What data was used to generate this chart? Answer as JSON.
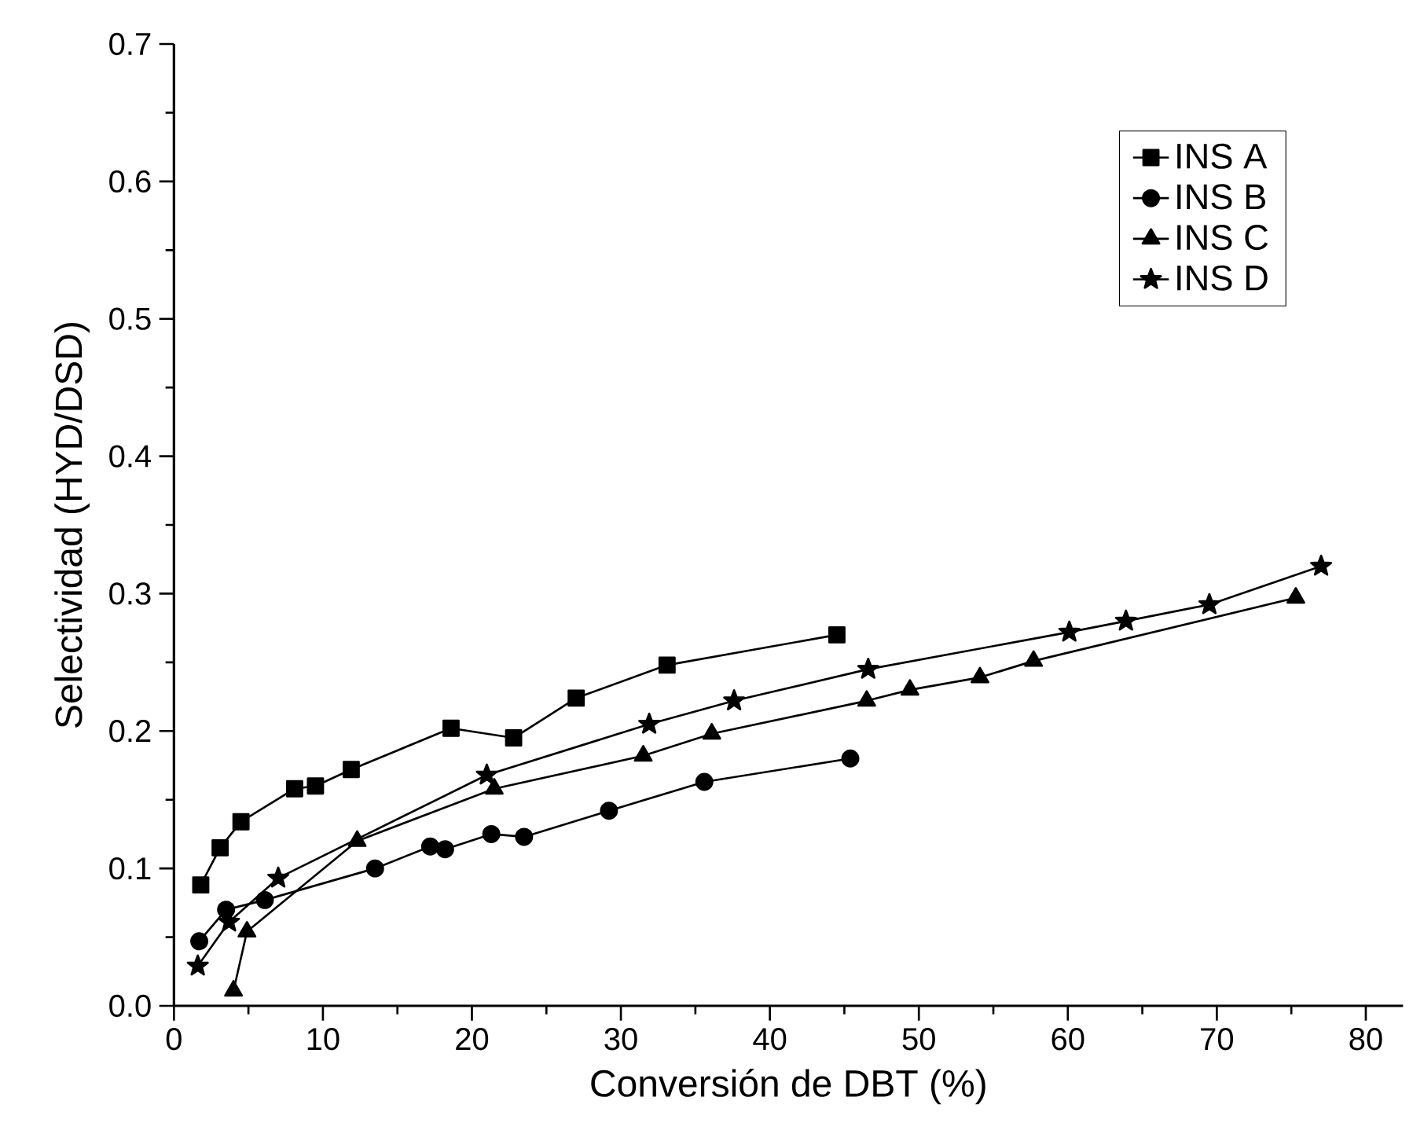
{
  "chart_data": {
    "type": "line",
    "xlabel": "Conversión de DBT (%)",
    "ylabel": "Selectividad (HYD/DSD)",
    "xlim": [
      0,
      82.5
    ],
    "ylim": [
      0,
      0.7
    ],
    "xticks": [
      0,
      10,
      20,
      30,
      40,
      50,
      60,
      70,
      80
    ],
    "yticks": [
      {
        "value": 0,
        "label": "0.0"
      },
      {
        "value": 0.1,
        "label": "0.1"
      },
      {
        "value": 0.2,
        "label": "0.2"
      },
      {
        "value": 0.3,
        "label": "0.3"
      },
      {
        "value": 0.4,
        "label": "0.4"
      },
      {
        "value": 0.5,
        "label": "0.5"
      },
      {
        "value": 0.6,
        "label": "0.6"
      },
      {
        "value": 0.7,
        "label": "0.7"
      }
    ],
    "grid": false,
    "legend": "top right",
    "line_style": "solid",
    "series": [
      {
        "name": "INS A",
        "color": "#000000",
        "marker": "square",
        "x": [
          1.8,
          3.1,
          4.5,
          8.1,
          9.5,
          11.9,
          18.6,
          22.8,
          27.0,
          33.1,
          44.5
        ],
        "values": [
          0.088,
          0.115,
          0.134,
          0.158,
          0.16,
          0.172,
          0.202,
          0.195,
          0.224,
          0.248,
          0.27
        ]
      },
      {
        "name": "INS B",
        "color": "#000000",
        "marker": "circle",
        "x": [
          1.7,
          3.5,
          6.1,
          13.5,
          17.2,
          18.2,
          21.3,
          23.5,
          29.2,
          35.6,
          45.4
        ],
        "values": [
          0.047,
          0.07,
          0.077,
          0.1,
          0.116,
          0.114,
          0.125,
          0.123,
          0.142,
          0.163,
          0.18
        ]
      },
      {
        "name": "INS C",
        "color": "#000000",
        "marker": "triangle",
        "x": [
          4.0,
          4.9,
          12.3,
          21.5,
          31.5,
          36.1,
          46.5,
          49.4,
          54.1,
          57.7,
          75.3
        ],
        "values": [
          0.011,
          0.054,
          0.12,
          0.158,
          0.182,
          0.198,
          0.222,
          0.23,
          0.239,
          0.251,
          0.297
        ]
      },
      {
        "name": "INS D",
        "color": "#000000",
        "marker": "star",
        "x": [
          1.6,
          3.7,
          7.0,
          21.0,
          31.9,
          37.6,
          46.6,
          60.1,
          63.9,
          69.5,
          77.0
        ],
        "values": [
          0.029,
          0.061,
          0.093,
          0.168,
          0.205,
          0.222,
          0.245,
          0.272,
          0.28,
          0.292,
          0.32
        ]
      }
    ]
  }
}
